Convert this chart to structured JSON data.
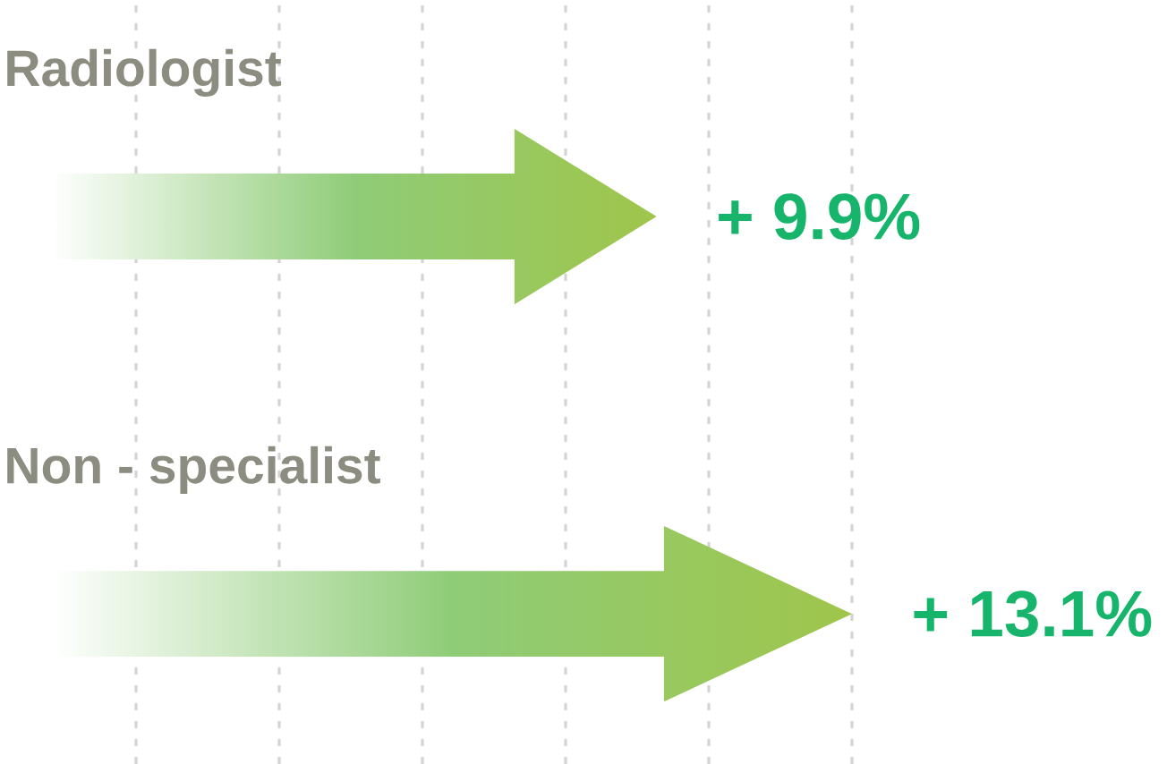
{
  "chart_data": {
    "type": "bar",
    "orientation": "horizontal",
    "categories": [
      "Radiologist",
      "Non - specialist"
    ],
    "values": [
      9.9,
      13.1
    ],
    "value_labels": [
      "+ 9.9%",
      "+ 13.1%"
    ],
    "color": "#8fcc78",
    "grid": "x",
    "tick_labels": "y"
  }
}
